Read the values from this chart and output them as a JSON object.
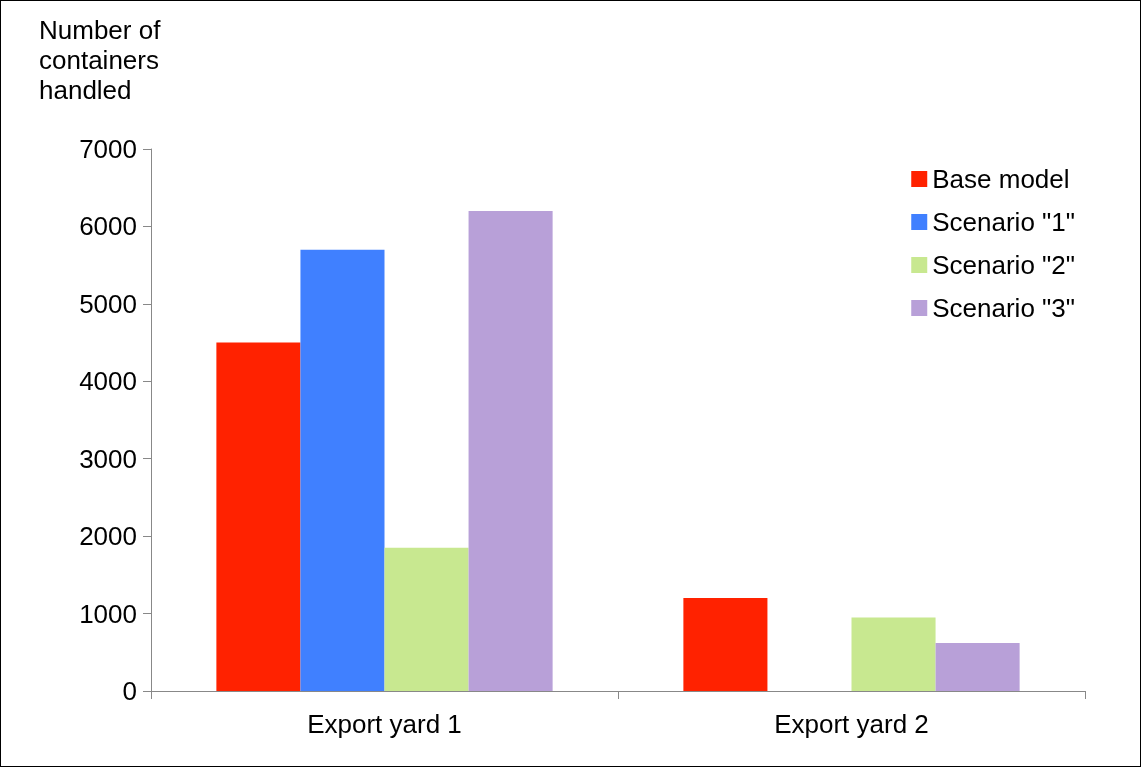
{
  "chart_data": {
    "type": "bar",
    "ylabel": "Number of containers handled",
    "categories": [
      "Export yard 1",
      "Export yard 2"
    ],
    "series": [
      {
        "name": "Base model",
        "color": "#ff2200",
        "values": [
          4500,
          1200
        ]
      },
      {
        "name": "Scenario \"1\"",
        "color": "#4080ff",
        "values": [
          5700,
          0
        ]
      },
      {
        "name": "Scenario \"2\"",
        "color": "#c8e890",
        "values": [
          1850,
          950
        ]
      },
      {
        "name": "Scenario \"3\"",
        "color": "#b8a0d8",
        "values": [
          6200,
          620
        ]
      }
    ],
    "ylim": [
      0,
      7000
    ],
    "yticks": [
      0,
      1000,
      2000,
      3000,
      4000,
      5000,
      6000,
      7000
    ],
    "grid": false,
    "legend": "top right"
  }
}
